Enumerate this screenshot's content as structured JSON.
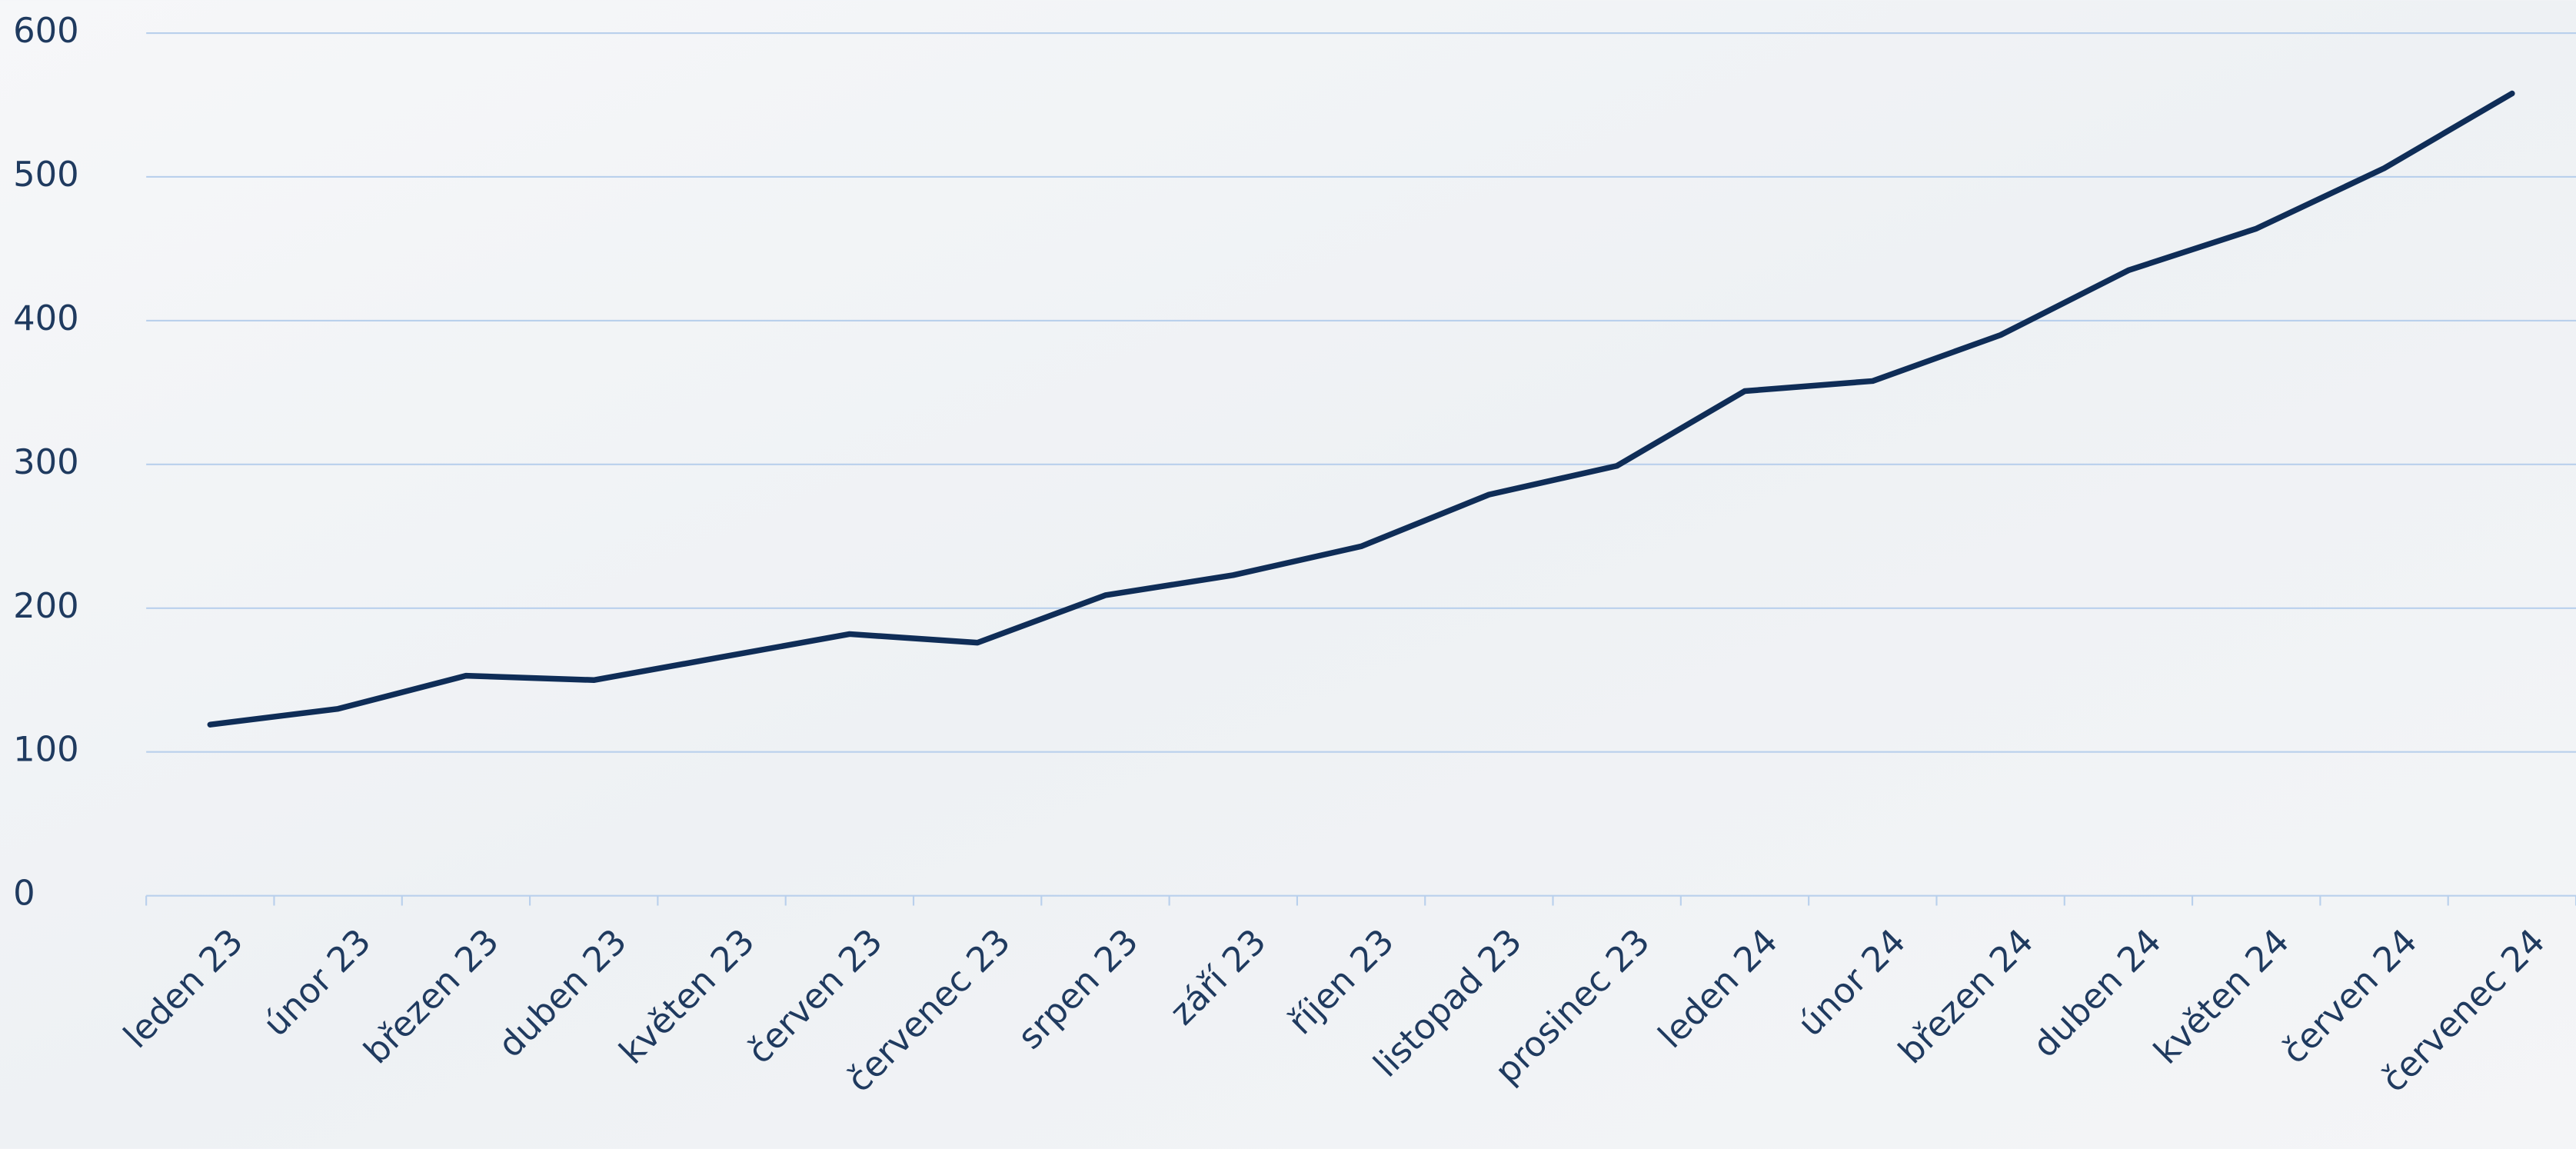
{
  "chart_data": {
    "type": "line",
    "categories": [
      "leden 23",
      "únor 23",
      "březen 23",
      "duben 23",
      "květen 23",
      "červen 23",
      "červenec 23",
      "srpen 23",
      "září 23",
      "říjen 23",
      "listopad 23",
      "prosinec 23",
      "leden 24",
      "únor 24",
      "březen 24",
      "duben 24",
      "květen 24",
      "červen 24",
      "červenec 24"
    ],
    "series": [
      {
        "color": "#0f2d57",
        "values": [
          119,
          130,
          153,
          150,
          166,
          182,
          176,
          209,
          223,
          243,
          279,
          299,
          351,
          358,
          390,
          435,
          464,
          506,
          558
        ]
      }
    ],
    "ylim": [
      0,
      600
    ],
    "yticks": [
      0,
      100,
      200,
      300,
      400,
      500,
      600
    ],
    "grid": true
  }
}
